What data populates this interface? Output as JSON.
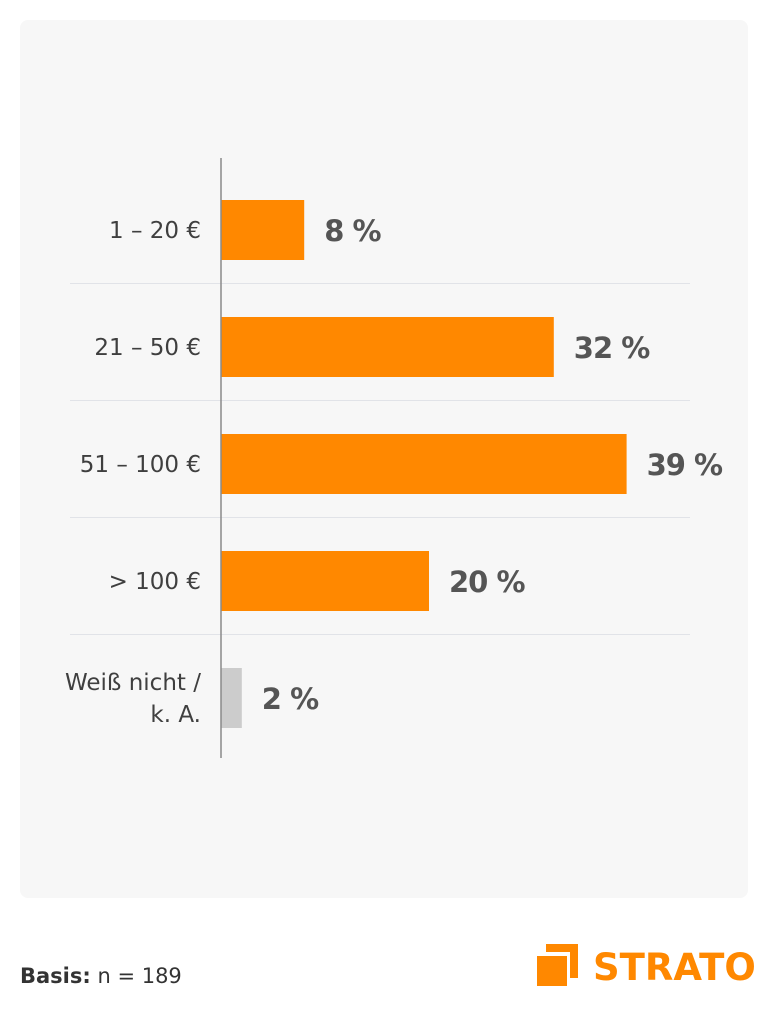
{
  "chart_data": {
    "type": "bar",
    "orientation": "horizontal",
    "categories": [
      "1 – 20 €",
      "21 – 50 €",
      "51  – 100 €",
      "> 100 €",
      "Weiß nicht / k. A."
    ],
    "category_lines": [
      [
        "1 – 20 €"
      ],
      [
        "21 – 50 €"
      ],
      [
        "51  – 100 €"
      ],
      [
        "> 100 €"
      ],
      [
        "Weiß nicht /",
        "k. A."
      ]
    ],
    "values": [
      8,
      32,
      39,
      20,
      2
    ],
    "value_labels": [
      "8 %",
      "32 %",
      "39 %",
      "20 %",
      "2 %"
    ],
    "bar_colors": [
      "#ff8800",
      "#ff8800",
      "#ff8800",
      "#ff8800",
      "#cccccc"
    ],
    "unit": "%",
    "title": "",
    "xlabel": "",
    "ylabel": "",
    "xlim": [
      0,
      40
    ],
    "grid": "separator lines between categories",
    "legend": "none"
  },
  "footer": {
    "basis_label": "Basis:",
    "basis_value": " n = 189"
  },
  "logo": {
    "text": "STRATO",
    "color": "#ff8800"
  },
  "colors": {
    "background_card": "#f7f7f7",
    "accent": "#ff8800",
    "muted_bar": "#cccccc"
  }
}
